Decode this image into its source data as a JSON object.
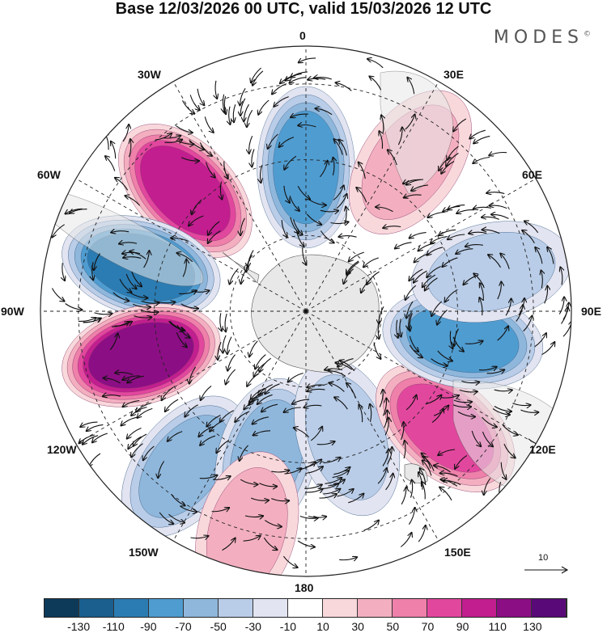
{
  "title": "Base 12/03/2026 00 UTC, valid 15/03/2026 12 UTC",
  "logo": "MODES",
  "logo_mark": "©",
  "longitude_labels": [
    "0",
    "30E",
    "60E",
    "90E",
    "120E",
    "150E",
    "180",
    "150W",
    "120W",
    "90W",
    "60W",
    "30W"
  ],
  "reference_vector_label": "10",
  "colorbar": {
    "colors": [
      "#0e3a5a",
      "#1a5f8e",
      "#2b7cb3",
      "#4f9cd0",
      "#8fb7dc",
      "#b9cde8",
      "#e2e4f1",
      "#ffffff",
      "#f9d8dc",
      "#f3afc0",
      "#ee80aa",
      "#e2479e",
      "#c21e8f",
      "#8c0e84",
      "#5a0a78"
    ],
    "tick_labels": [
      "-130",
      "-110",
      "-90",
      "-70",
      "-50",
      "-30",
      "-10",
      "10",
      "30",
      "50",
      "70",
      "90",
      "110",
      "130"
    ]
  },
  "anomaly_centers": [
    {
      "lon": 0,
      "lat": -52,
      "value": -85
    },
    {
      "lon": -45,
      "lat": -45,
      "value": 110
    },
    {
      "lon": -75,
      "lat": -45,
      "value": -110
    },
    {
      "lon": -105,
      "lat": -45,
      "value": 125
    },
    {
      "lon": -142,
      "lat": -38,
      "value": -70
    },
    {
      "lon": -165,
      "lat": -50,
      "value": -60
    },
    {
      "lon": 162,
      "lat": -55,
      "value": -50
    },
    {
      "lon": -165,
      "lat": -30,
      "value": 45
    },
    {
      "lon": 130,
      "lat": -42,
      "value": 95
    },
    {
      "lon": 100,
      "lat": -48,
      "value": -80
    },
    {
      "lon": 78,
      "lat": -40,
      "value": -45
    },
    {
      "lon": 35,
      "lat": -42,
      "value": 50
    }
  ]
}
